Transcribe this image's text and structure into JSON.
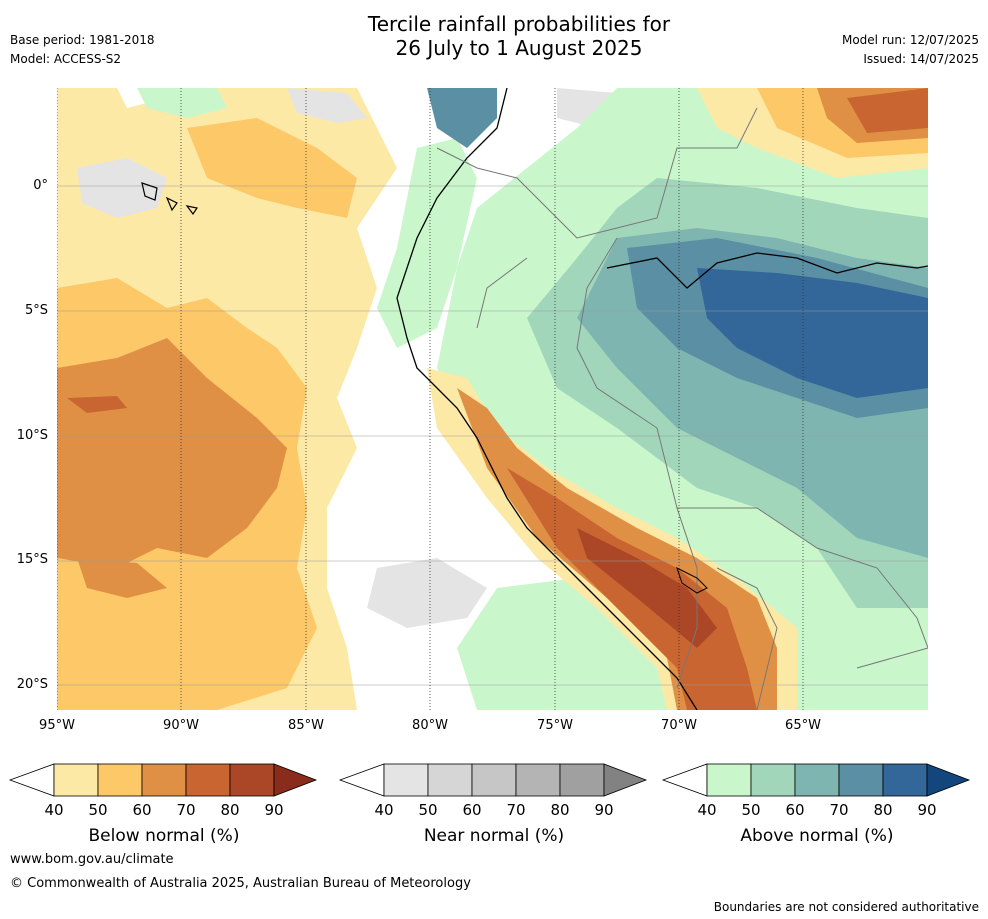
{
  "header": {
    "title_line1": "Tercile rainfall probabilities for",
    "title_line2": "26 July to 1 August 2025",
    "base_period": "Base period: 1981-2018",
    "model": "Model: ACCESS-S2",
    "model_run": "Model run: 12/07/2025",
    "issued": "Issued: 14/07/2025"
  },
  "axes": {
    "lat_labels": [
      "0°",
      "5°S",
      "10°S",
      "15°S",
      "20°S"
    ],
    "lon_labels": [
      "95°W",
      "90°W",
      "85°W",
      "80°W",
      "75°W",
      "70°W",
      "65°W"
    ]
  },
  "colorbars": [
    {
      "label": "Below normal (%)",
      "ticks": [
        "40",
        "50",
        "60",
        "70",
        "80",
        "90"
      ],
      "colors": [
        "#ffffff",
        "#fde9a6",
        "#fdc867",
        "#e09045",
        "#c96530",
        "#ab4626",
        "#8a2c1c"
      ]
    },
    {
      "label": "Near normal (%)",
      "ticks": [
        "40",
        "50",
        "60",
        "70",
        "80",
        "90"
      ],
      "colors": [
        "#ffffff",
        "#e4e4e4",
        "#d6d6d6",
        "#c6c6c6",
        "#b4b4b4",
        "#a0a0a0",
        "#828282"
      ]
    },
    {
      "label": "Above normal (%)",
      "ticks": [
        "40",
        "50",
        "60",
        "70",
        "80",
        "90"
      ],
      "colors": [
        "#ffffff",
        "#c9f7cb",
        "#a2d6bb",
        "#7fb5b0",
        "#5b8fa3",
        "#33679a",
        "#14467e"
      ]
    }
  ],
  "footer": {
    "url": "www.bom.gov.au/climate",
    "copyright": "© Commonwealth of Australia 2025, Australian Bureau of Meteorology",
    "disclaimer": "Boundaries are not considered authoritative"
  }
}
